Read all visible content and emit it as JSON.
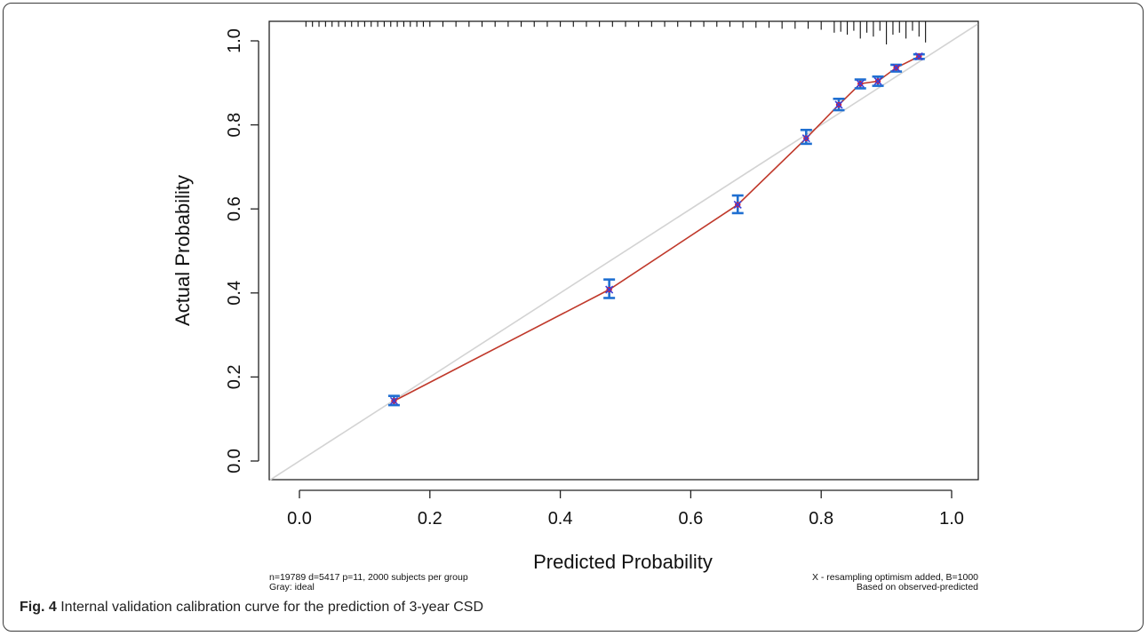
{
  "chart_data": {
    "type": "scatter",
    "xlabel": "Predicted Probability",
    "ylabel": "Actual Probability",
    "xlim": [
      0.0,
      1.0
    ],
    "ylim": [
      0.0,
      1.0
    ],
    "xticks": [
      "0.0",
      "0.2",
      "0.4",
      "0.6",
      "0.8",
      "1.0"
    ],
    "yticks": [
      "0.0",
      "0.2",
      "0.4",
      "0.6",
      "0.8",
      "1.0"
    ],
    "reference_line": "ideal diagonal (gray)",
    "colors": {
      "calibration_line": "#c0392b",
      "error_bar": "#1f6fd1",
      "cross": "#3b3fd6",
      "point": "#d61f3b",
      "ideal": "#d3d3d3",
      "rug": "#111111"
    },
    "points": [
      {
        "x": 0.145,
        "y": 0.143,
        "lo": 0.133,
        "hi": 0.155
      },
      {
        "x": 0.475,
        "y": 0.408,
        "lo": 0.388,
        "hi": 0.432
      },
      {
        "x": 0.672,
        "y": 0.61,
        "lo": 0.59,
        "hi": 0.632
      },
      {
        "x": 0.777,
        "y": 0.768,
        "lo": 0.755,
        "hi": 0.788
      },
      {
        "x": 0.827,
        "y": 0.848,
        "lo": 0.835,
        "hi": 0.862
      },
      {
        "x": 0.86,
        "y": 0.898,
        "lo": 0.887,
        "hi": 0.908
      },
      {
        "x": 0.887,
        "y": 0.904,
        "lo": 0.893,
        "hi": 0.915
      },
      {
        "x": 0.915,
        "y": 0.936,
        "lo": 0.927,
        "hi": 0.943
      },
      {
        "x": 0.95,
        "y": 0.963,
        "lo": 0.957,
        "hi": 0.968
      }
    ],
    "rug": [
      {
        "x": 0.01,
        "h": 0.1
      },
      {
        "x": 0.02,
        "h": 0.1
      },
      {
        "x": 0.03,
        "h": 0.1
      },
      {
        "x": 0.04,
        "h": 0.1
      },
      {
        "x": 0.05,
        "h": 0.1
      },
      {
        "x": 0.06,
        "h": 0.1
      },
      {
        "x": 0.07,
        "h": 0.1
      },
      {
        "x": 0.08,
        "h": 0.1
      },
      {
        "x": 0.09,
        "h": 0.1
      },
      {
        "x": 0.1,
        "h": 0.1
      },
      {
        "x": 0.11,
        "h": 0.1
      },
      {
        "x": 0.12,
        "h": 0.1
      },
      {
        "x": 0.13,
        "h": 0.1
      },
      {
        "x": 0.14,
        "h": 0.1
      },
      {
        "x": 0.15,
        "h": 0.1
      },
      {
        "x": 0.16,
        "h": 0.1
      },
      {
        "x": 0.17,
        "h": 0.1
      },
      {
        "x": 0.18,
        "h": 0.1
      },
      {
        "x": 0.19,
        "h": 0.1
      },
      {
        "x": 0.2,
        "h": 0.1
      },
      {
        "x": 0.22,
        "h": 0.1
      },
      {
        "x": 0.24,
        "h": 0.1
      },
      {
        "x": 0.26,
        "h": 0.1
      },
      {
        "x": 0.28,
        "h": 0.1
      },
      {
        "x": 0.3,
        "h": 0.1
      },
      {
        "x": 0.32,
        "h": 0.1
      },
      {
        "x": 0.34,
        "h": 0.1
      },
      {
        "x": 0.36,
        "h": 0.1
      },
      {
        "x": 0.38,
        "h": 0.1
      },
      {
        "x": 0.4,
        "h": 0.1
      },
      {
        "x": 0.42,
        "h": 0.1
      },
      {
        "x": 0.44,
        "h": 0.1
      },
      {
        "x": 0.46,
        "h": 0.1
      },
      {
        "x": 0.48,
        "h": 0.1
      },
      {
        "x": 0.5,
        "h": 0.1
      },
      {
        "x": 0.52,
        "h": 0.1
      },
      {
        "x": 0.54,
        "h": 0.1
      },
      {
        "x": 0.56,
        "h": 0.1
      },
      {
        "x": 0.58,
        "h": 0.1
      },
      {
        "x": 0.6,
        "h": 0.1
      },
      {
        "x": 0.62,
        "h": 0.1
      },
      {
        "x": 0.64,
        "h": 0.1
      },
      {
        "x": 0.66,
        "h": 0.1
      },
      {
        "x": 0.68,
        "h": 0.15
      },
      {
        "x": 0.7,
        "h": 0.15
      },
      {
        "x": 0.72,
        "h": 0.15
      },
      {
        "x": 0.74,
        "h": 0.2
      },
      {
        "x": 0.76,
        "h": 0.2
      },
      {
        "x": 0.78,
        "h": 0.2
      },
      {
        "x": 0.8,
        "h": 0.25
      },
      {
        "x": 0.82,
        "h": 0.4
      },
      {
        "x": 0.83,
        "h": 0.35
      },
      {
        "x": 0.84,
        "h": 0.5
      },
      {
        "x": 0.85,
        "h": 0.3
      },
      {
        "x": 0.86,
        "h": 0.7
      },
      {
        "x": 0.87,
        "h": 0.4
      },
      {
        "x": 0.88,
        "h": 0.6
      },
      {
        "x": 0.89,
        "h": 0.3
      },
      {
        "x": 0.9,
        "h": 1.0
      },
      {
        "x": 0.91,
        "h": 0.5
      },
      {
        "x": 0.92,
        "h": 0.4
      },
      {
        "x": 0.93,
        "h": 0.7
      },
      {
        "x": 0.94,
        "h": 0.3
      },
      {
        "x": 0.95,
        "h": 0.6
      },
      {
        "x": 0.96,
        "h": 0.9
      }
    ]
  },
  "notes": {
    "left_line1": "n=19789 d=5417 p=11, 2000 subjects per group",
    "left_line2": "Gray: ideal",
    "right_line1": "X - resampling optimism added, B=1000",
    "right_line2": "Based on observed-predicted"
  },
  "caption": {
    "label": "Fig. 4",
    "text": "Internal validation calibration curve for the prediction of 3-year CSD"
  }
}
